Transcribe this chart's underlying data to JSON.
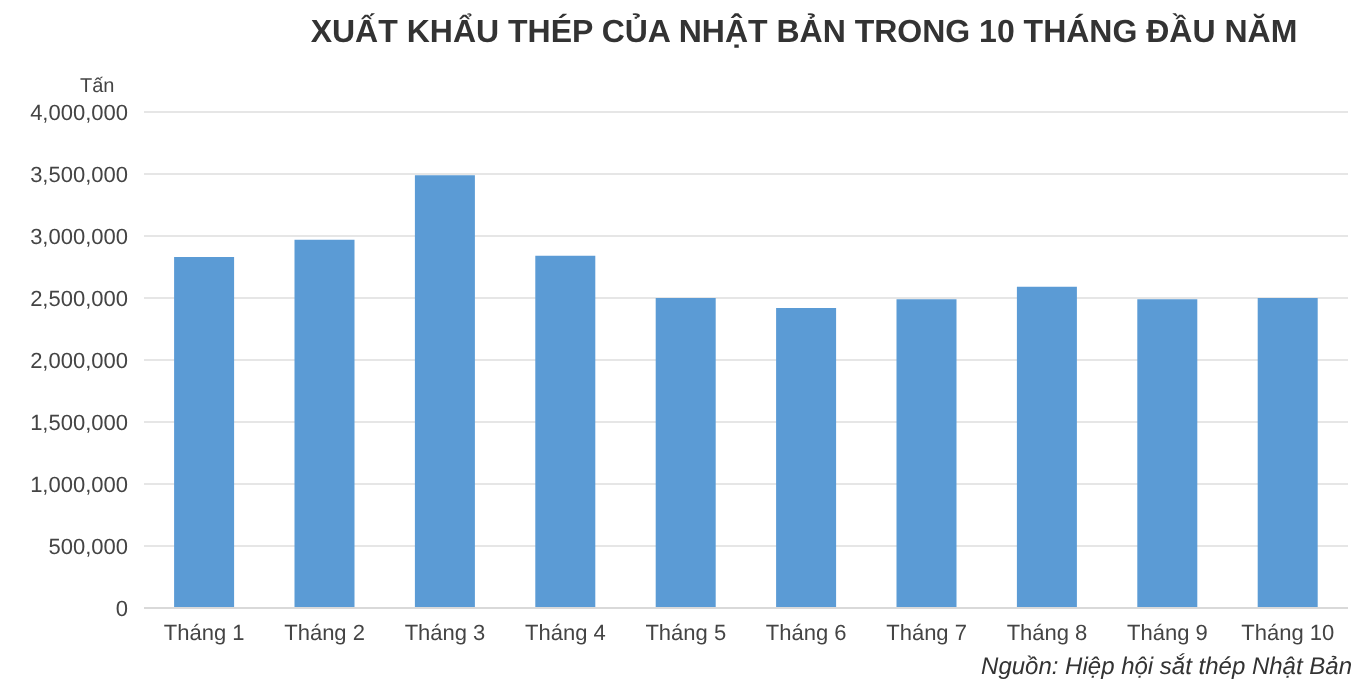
{
  "chart_data": {
    "type": "bar",
    "title": "XUẤT KHẨU THÉP CỦA NHẬT BẢN TRONG 10 THÁNG ĐẦU NĂM",
    "ylabel": "Tấn",
    "categories": [
      "Tháng 1",
      "Tháng 2",
      "Tháng 3",
      "Tháng 4",
      "Tháng 5",
      "Tháng 6",
      "Tháng 7",
      "Tháng 8",
      "Tháng 9",
      "Tháng 10"
    ],
    "values": [
      2830000,
      2970000,
      3490000,
      2840000,
      2500000,
      2420000,
      2490000,
      2590000,
      2490000,
      2500000
    ],
    "color": "#5b9bd5",
    "ylim": [
      0,
      4000000
    ],
    "yticks": [
      0,
      {
        "value": 500000,
        "label": "500,000"
      },
      {
        "value": 1000000,
        "label": "1,000,000"
      },
      {
        "value": 1500000,
        "label": "1,500,000"
      },
      {
        "value": 2000000,
        "label": "2,000,000"
      },
      {
        "value": 2500000,
        "label": "2,500,000"
      },
      {
        "value": 3000000,
        "label": "3,000,000"
      },
      {
        "value": 3500000,
        "label": "3,500,000"
      },
      {
        "value": 4000000,
        "label": "4,000,000"
      }
    ],
    "grid": "y",
    "legend": false,
    "annotations": [
      "Nguồn:  Hiệp hội sắt thép Nhật Bản"
    ]
  }
}
